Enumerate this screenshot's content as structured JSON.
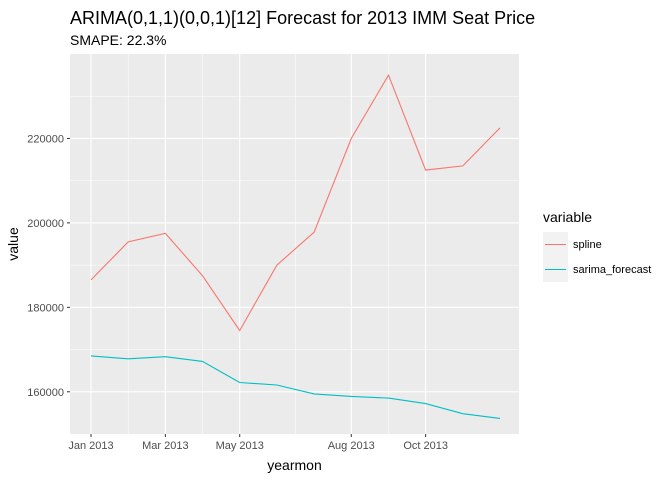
{
  "chart_data": {
    "type": "line",
    "title": "ARIMA(0,1,1)(0,0,1)[12] Forecast for 2013 IMM Seat Price",
    "subtitle": "SMAPE: 22.3%",
    "xlabel": "yearmon",
    "ylabel": "value",
    "x": [
      "Jan 2013",
      "Feb 2013",
      "Mar 2013",
      "Apr 2013",
      "May 2013",
      "Jun 2013",
      "Jul 2013",
      "Aug 2013",
      "Sep 2013",
      "Oct 2013",
      "Nov 2013",
      "Dec 2013"
    ],
    "x_ticks": [
      "Jan 2013",
      "Mar 2013",
      "May 2013",
      "Aug 2013",
      "Oct 2013"
    ],
    "ylim": [
      150000,
      240000
    ],
    "y_ticks": [
      160000,
      180000,
      200000,
      220000
    ],
    "y_tick_labels": [
      "160000",
      "180000",
      "200000",
      "220000"
    ],
    "grid": true,
    "legend": {
      "title": "variable",
      "position": "right"
    },
    "series": [
      {
        "name": "spline",
        "color": "#F8766D",
        "values": [
          186500,
          195500,
          197500,
          187500,
          174500,
          190000,
          197800,
          220000,
          235000,
          212500,
          213500,
          222500
        ]
      },
      {
        "name": "sarima_forecast",
        "color": "#00BFC4",
        "values": [
          168500,
          167800,
          168300,
          167200,
          162200,
          161600,
          159500,
          158900,
          158500,
          157200,
          154800,
          153700
        ]
      }
    ]
  }
}
